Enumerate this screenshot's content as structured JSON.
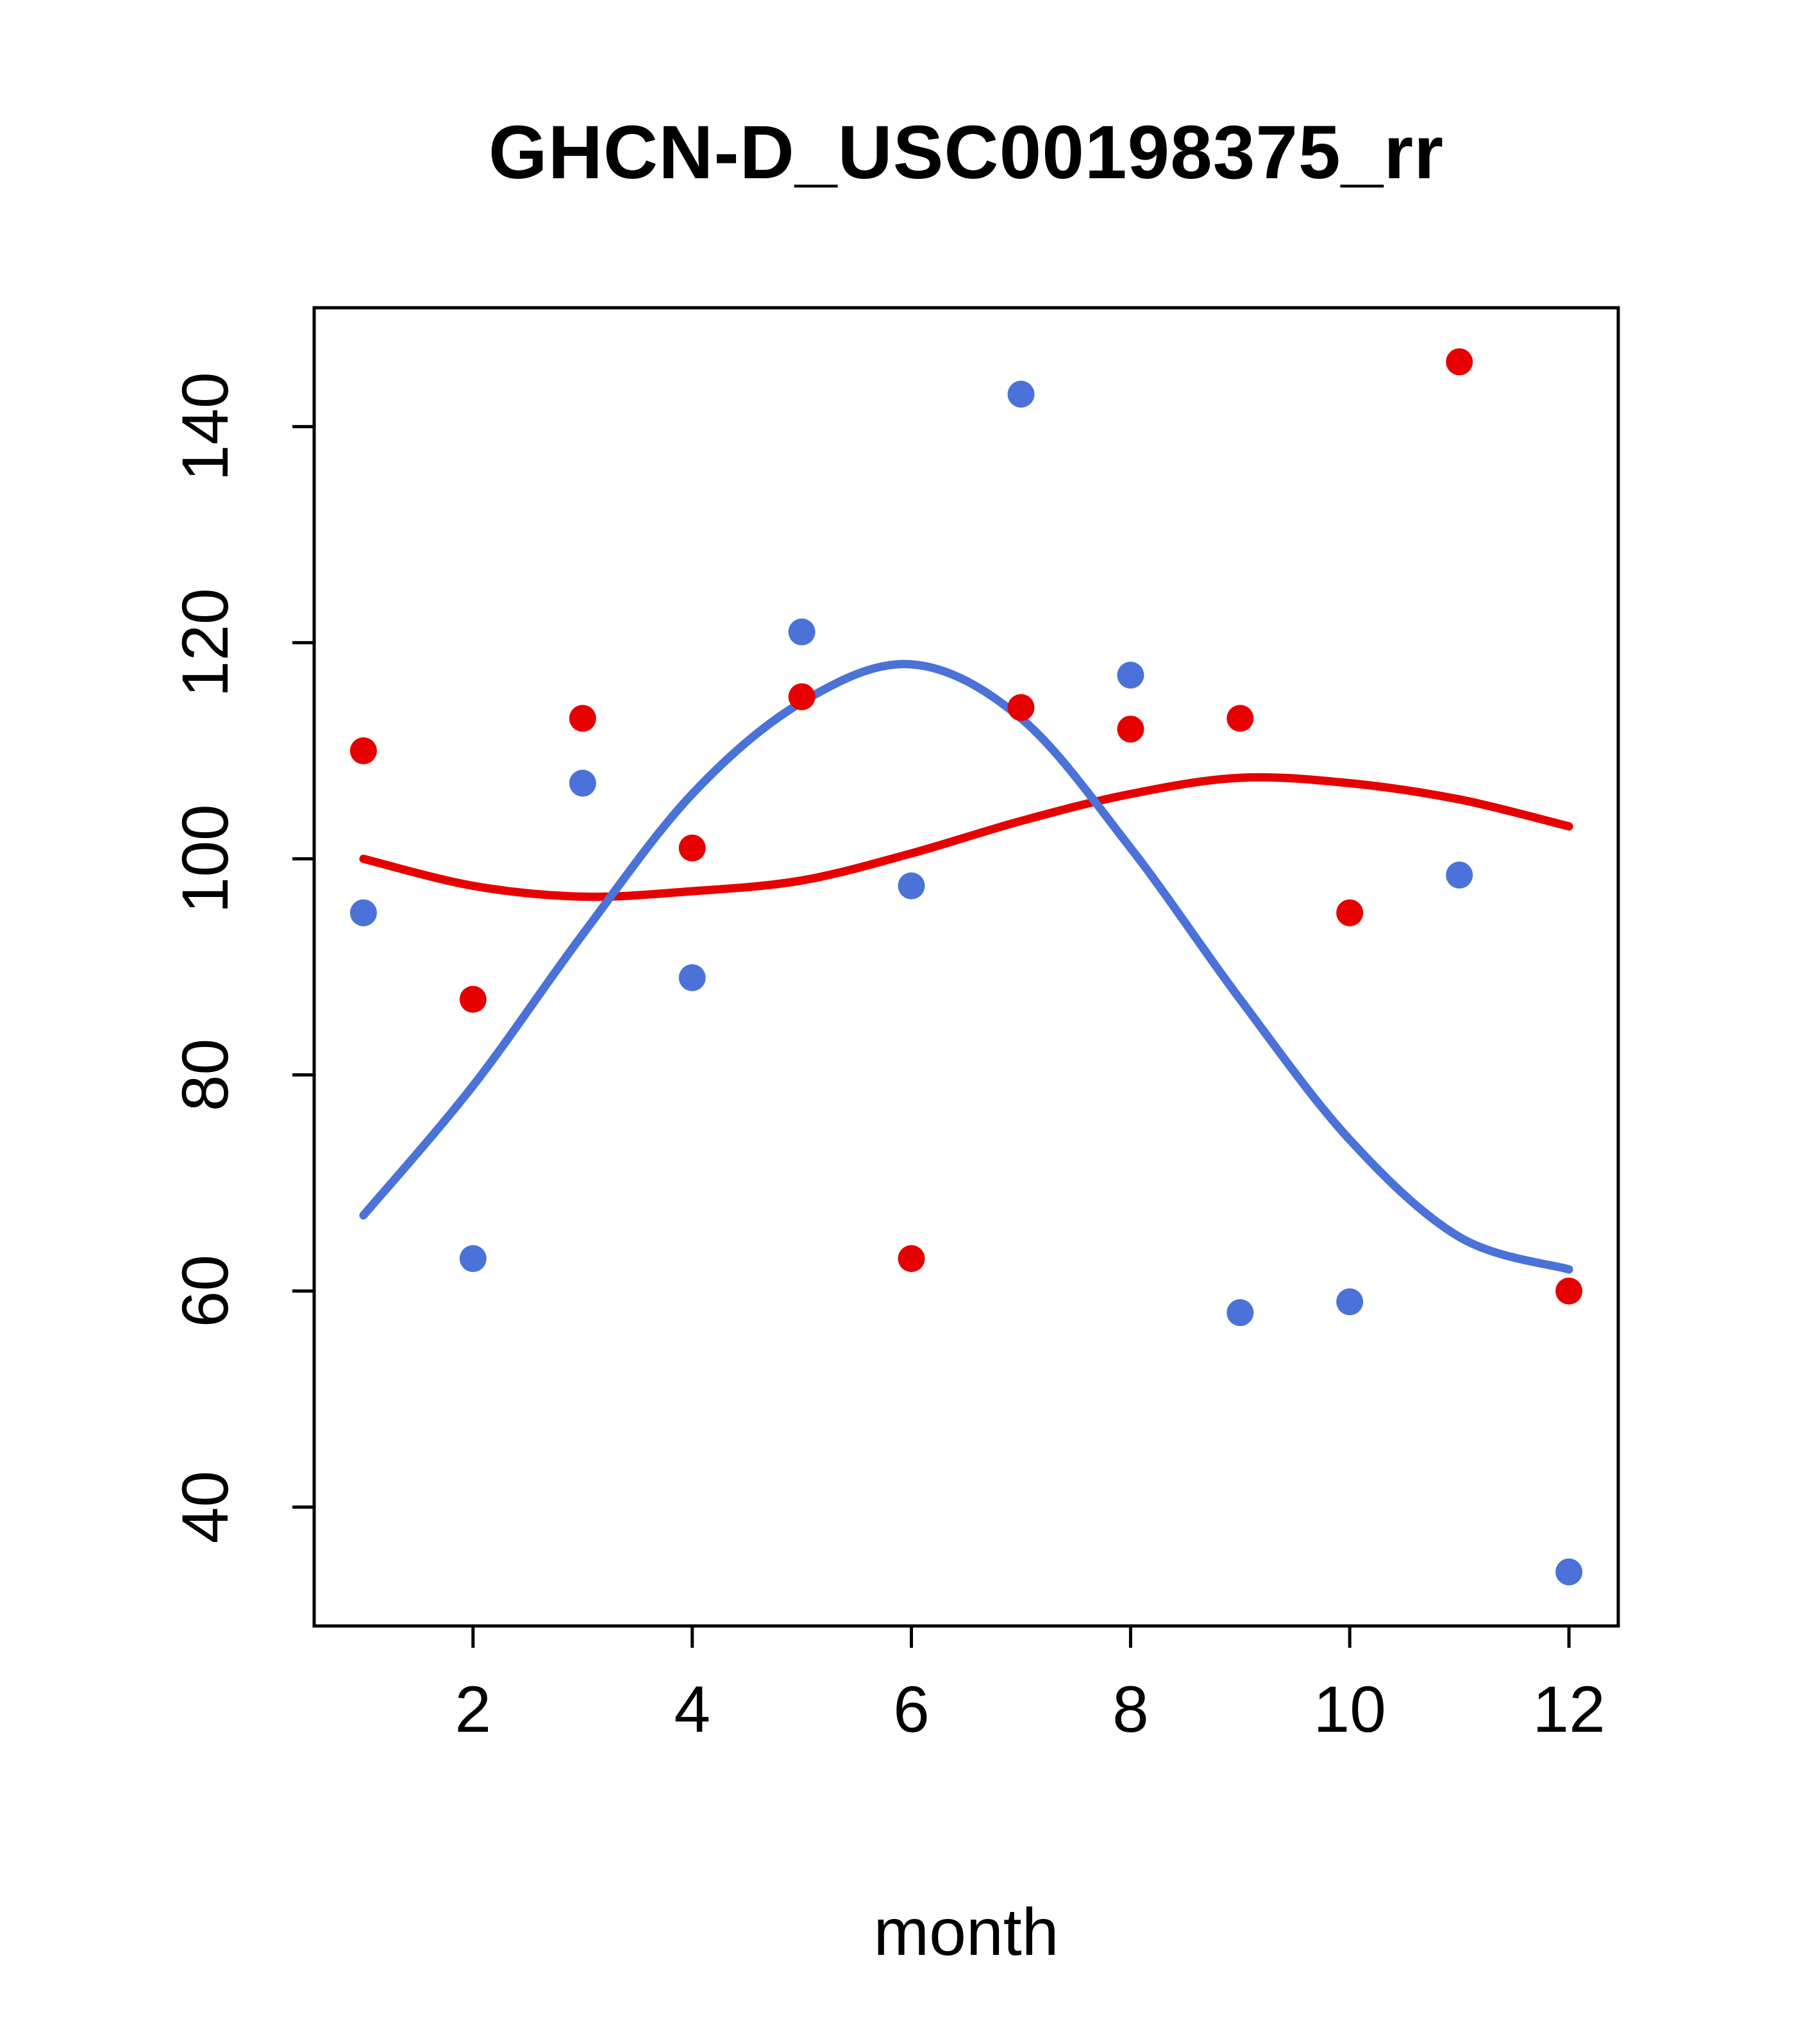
{
  "title": "GHCN-D_USC00198375_rr",
  "xlabel": "month",
  "colors": {
    "red": "#e60000",
    "blue": "#4a72d8",
    "axis": "#000000",
    "background": "#ffffff"
  },
  "chart_data": {
    "type": "scatter",
    "title": "GHCN-D_USC00198375_rr",
    "xlabel": "month",
    "ylabel": "",
    "x": [
      1,
      2,
      3,
      4,
      5,
      6,
      7,
      8,
      9,
      10,
      11,
      12
    ],
    "series": [
      {
        "name": "red-points",
        "kind": "scatter",
        "color": "#e60000",
        "values": [
          110,
          87,
          113,
          101,
          115,
          63,
          114,
          112,
          113,
          95,
          146,
          60
        ]
      },
      {
        "name": "blue-points",
        "kind": "scatter",
        "color": "#4a72d8",
        "values": [
          95,
          63,
          107,
          89,
          121,
          97.5,
          143,
          117,
          58,
          59,
          98.5,
          34
        ]
      },
      {
        "name": "red-smooth-line",
        "kind": "line",
        "color": "#e60000",
        "values": [
          100,
          97.5,
          96.5,
          97,
          98,
          100.5,
          103.5,
          106,
          107.5,
          107,
          105.5,
          103
        ]
      },
      {
        "name": "blue-smooth-line",
        "kind": "line",
        "color": "#4a72d8",
        "values": [
          67,
          79,
          93,
          106,
          114.5,
          118,
          113,
          101,
          87,
          74,
          65,
          62
        ]
      }
    ],
    "xticks": [
      2,
      4,
      6,
      8,
      10,
      12
    ],
    "yticks": [
      40,
      60,
      80,
      100,
      120,
      140
    ],
    "xlim": [
      0.55,
      12.45
    ],
    "ylim": [
      29,
      151
    ],
    "grid": false,
    "legend": "none"
  }
}
